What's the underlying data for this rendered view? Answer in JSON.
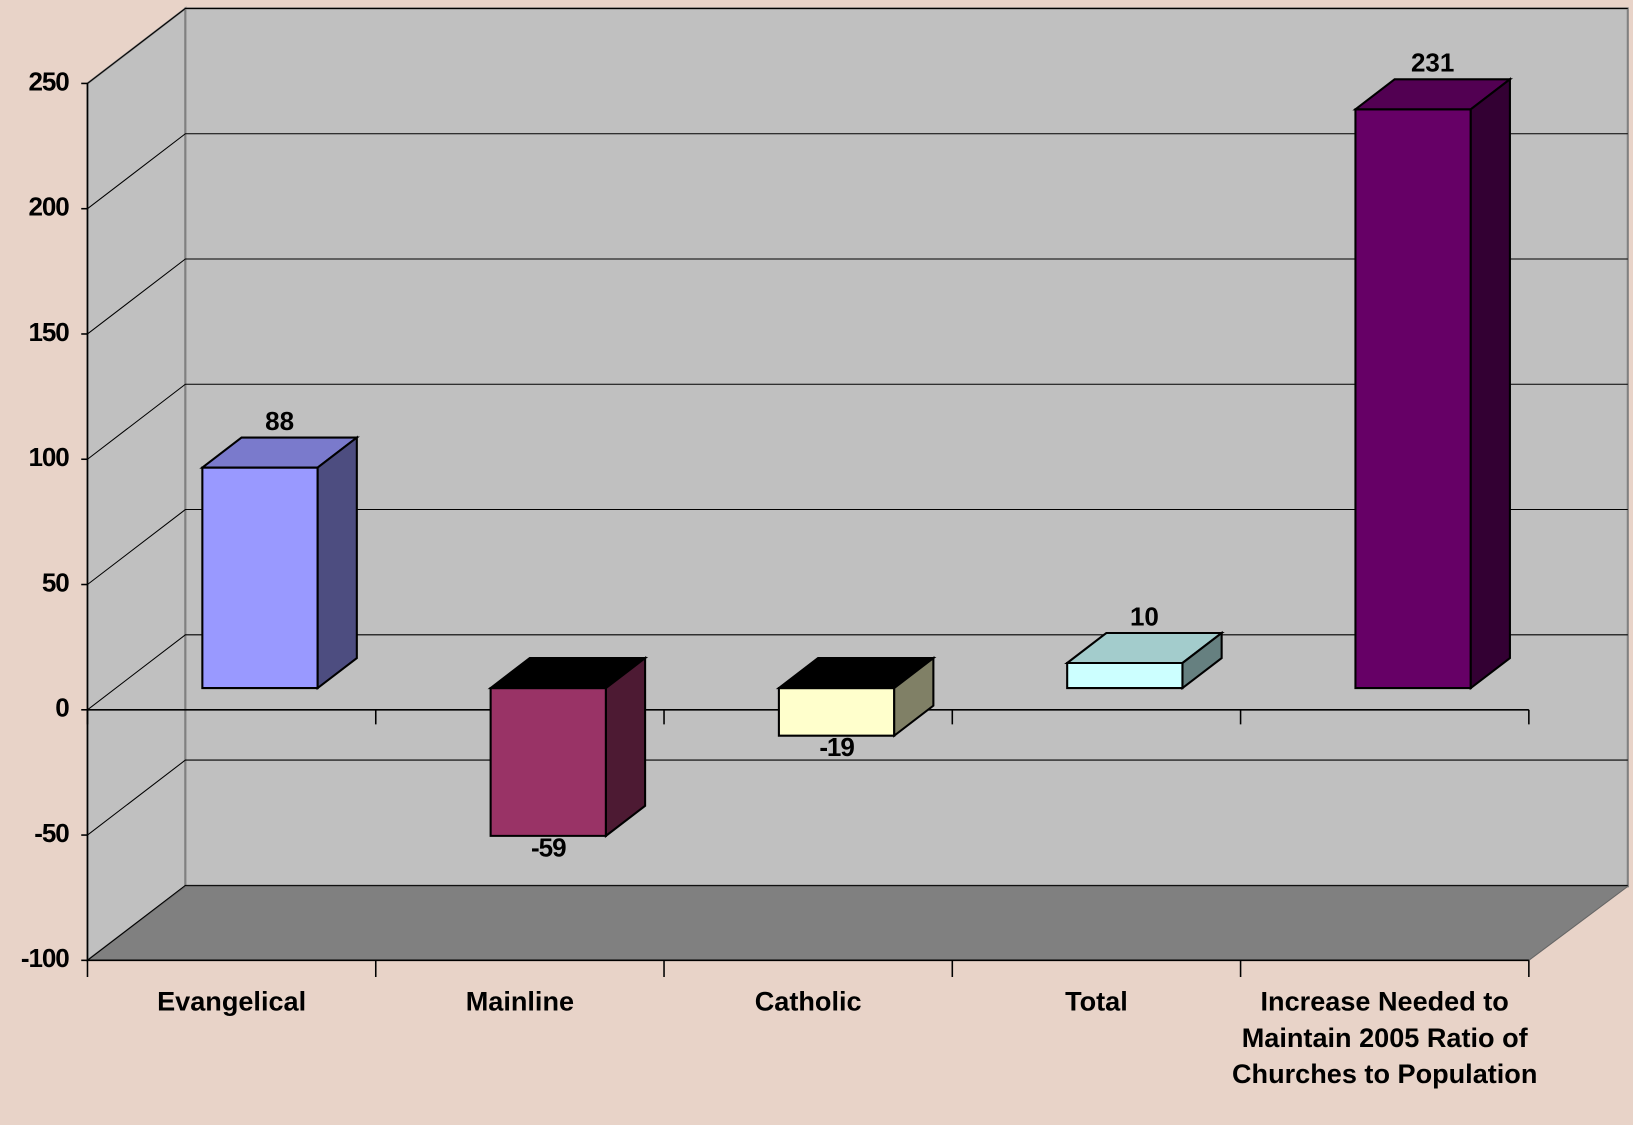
{
  "chart_data": {
    "type": "bar3d",
    "categories": [
      "Evangelical",
      "Mainline",
      "Catholic",
      "Total",
      "Increase Needed to Maintain 2005 Ratio of Churches to Population"
    ],
    "values": [
      88,
      -59,
      -19,
      10,
      231
    ],
    "colors": [
      "#9999ff",
      "#993366",
      "#ffffcc",
      "#ccffff",
      "#660066"
    ],
    "ylim": [
      -100,
      250
    ],
    "yticks": [
      -100,
      -50,
      0,
      50,
      100,
      150,
      200,
      250
    ],
    "grid": true
  }
}
